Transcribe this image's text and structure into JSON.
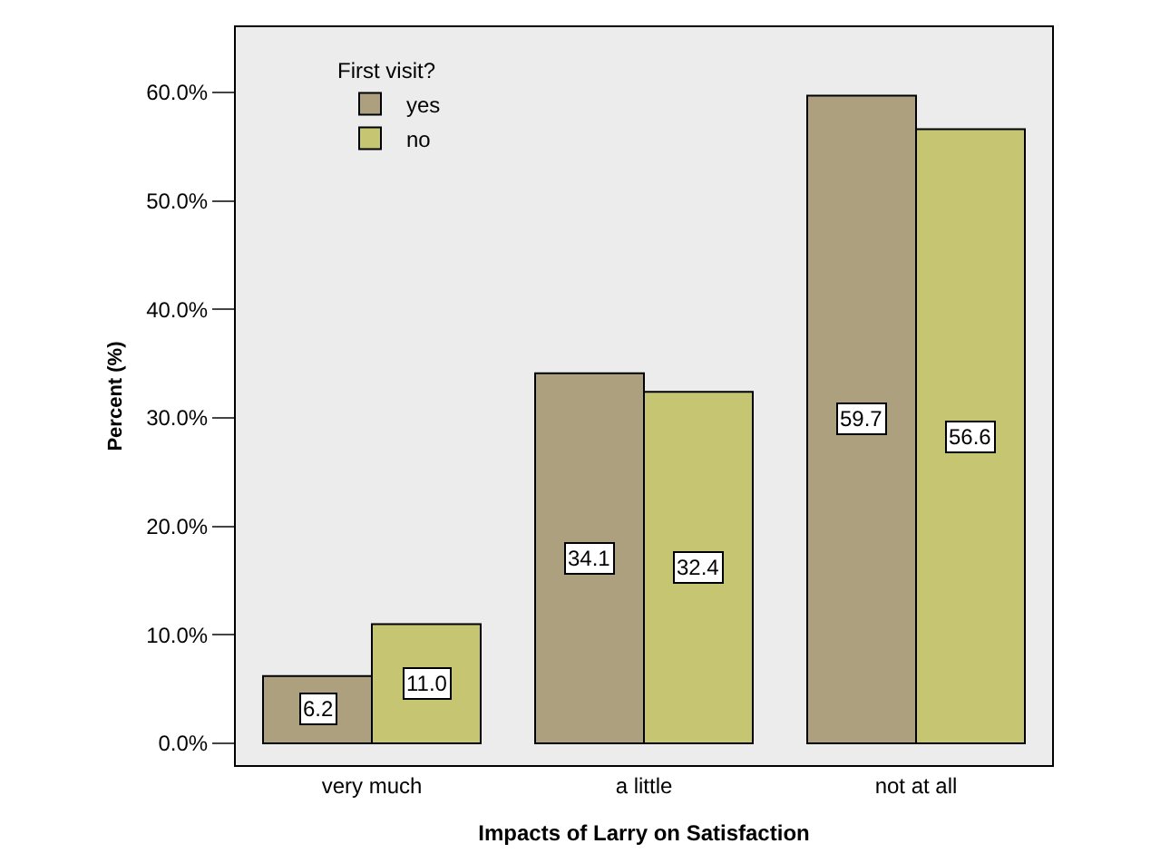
{
  "chart_data": {
    "type": "bar",
    "xlabel": "Impacts of Larry on Satisfaction",
    "ylabel": "Percent (%)",
    "legend_title": "First visit?",
    "legend": "top left",
    "grid": false,
    "categories": [
      "very much",
      "a little",
      "not at all"
    ],
    "series": [
      {
        "name": "yes",
        "color": "#aca07e",
        "values": [
          6.2,
          34.1,
          59.7
        ],
        "value_labels": [
          "6.2",
          "34.1",
          "59.7"
        ]
      },
      {
        "name": "no",
        "color": "#c6c672",
        "values": [
          11.0,
          32.4,
          56.6
        ],
        "value_labels": [
          "11.0",
          "32.4",
          "56.6"
        ]
      }
    ],
    "ylim": [
      -2,
      66
    ],
    "yticks": [
      {
        "value": 0,
        "label": "0.0%"
      },
      {
        "value": 10,
        "label": "10.0%"
      },
      {
        "value": 20,
        "label": "20.0%"
      },
      {
        "value": 30,
        "label": "30.0%"
      },
      {
        "value": 40,
        "label": "40.0%"
      },
      {
        "value": 50,
        "label": "50.0%"
      },
      {
        "value": 60,
        "label": "60.0%"
      }
    ]
  }
}
